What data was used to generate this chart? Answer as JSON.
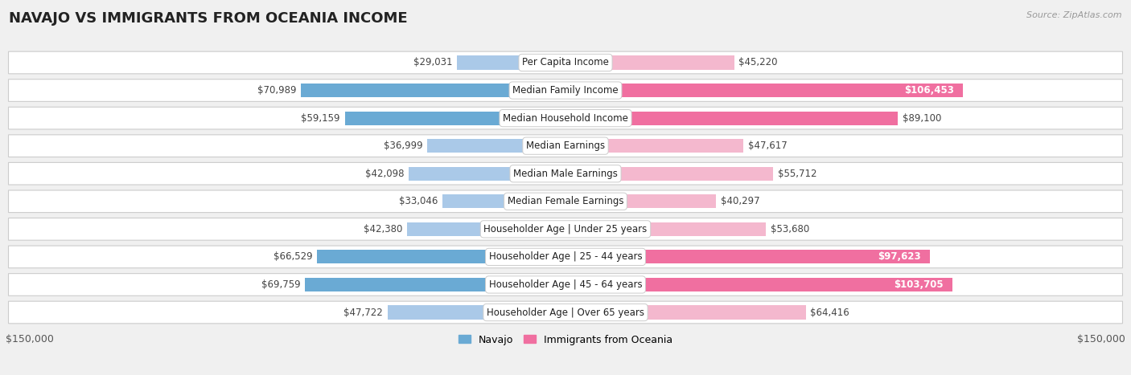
{
  "title": "NAVAJO VS IMMIGRANTS FROM OCEANIA INCOME",
  "source": "Source: ZipAtlas.com",
  "categories": [
    "Per Capita Income",
    "Median Family Income",
    "Median Household Income",
    "Median Earnings",
    "Median Male Earnings",
    "Median Female Earnings",
    "Householder Age | Under 25 years",
    "Householder Age | 25 - 44 years",
    "Householder Age | 45 - 64 years",
    "Householder Age | Over 65 years"
  ],
  "navajo_values": [
    29031,
    70989,
    59159,
    36999,
    42098,
    33046,
    42380,
    66529,
    69759,
    47722
  ],
  "oceania_values": [
    45220,
    106453,
    89100,
    47617,
    55712,
    40297,
    53680,
    97623,
    103705,
    64416
  ],
  "navajo_colors": [
    "#aac9e8",
    "#6aaad4",
    "#6aaad4",
    "#aac9e8",
    "#aac9e8",
    "#aac9e8",
    "#aac9e8",
    "#6aaad4",
    "#6aaad4",
    "#aac9e8"
  ],
  "oceania_colors": [
    "#f4b8ce",
    "#f06fa0",
    "#f06fa0",
    "#f4b8ce",
    "#f4b8ce",
    "#f4b8ce",
    "#f4b8ce",
    "#f06fa0",
    "#f06fa0",
    "#f4b8ce"
  ],
  "navajo_legend_color": "#6aaad4",
  "oceania_legend_color": "#f06fa0",
  "max_value": 150000,
  "x_label_left": "$150,000",
  "x_label_right": "$150,000",
  "legend_navajo": "Navajo",
  "legend_oceania": "Immigrants from Oceania",
  "background_color": "#f0f0f0",
  "row_bg_color": "#ffffff",
  "title_fontsize": 13,
  "bar_label_fontsize": 8.5,
  "inside_label_threshold": 0.6
}
